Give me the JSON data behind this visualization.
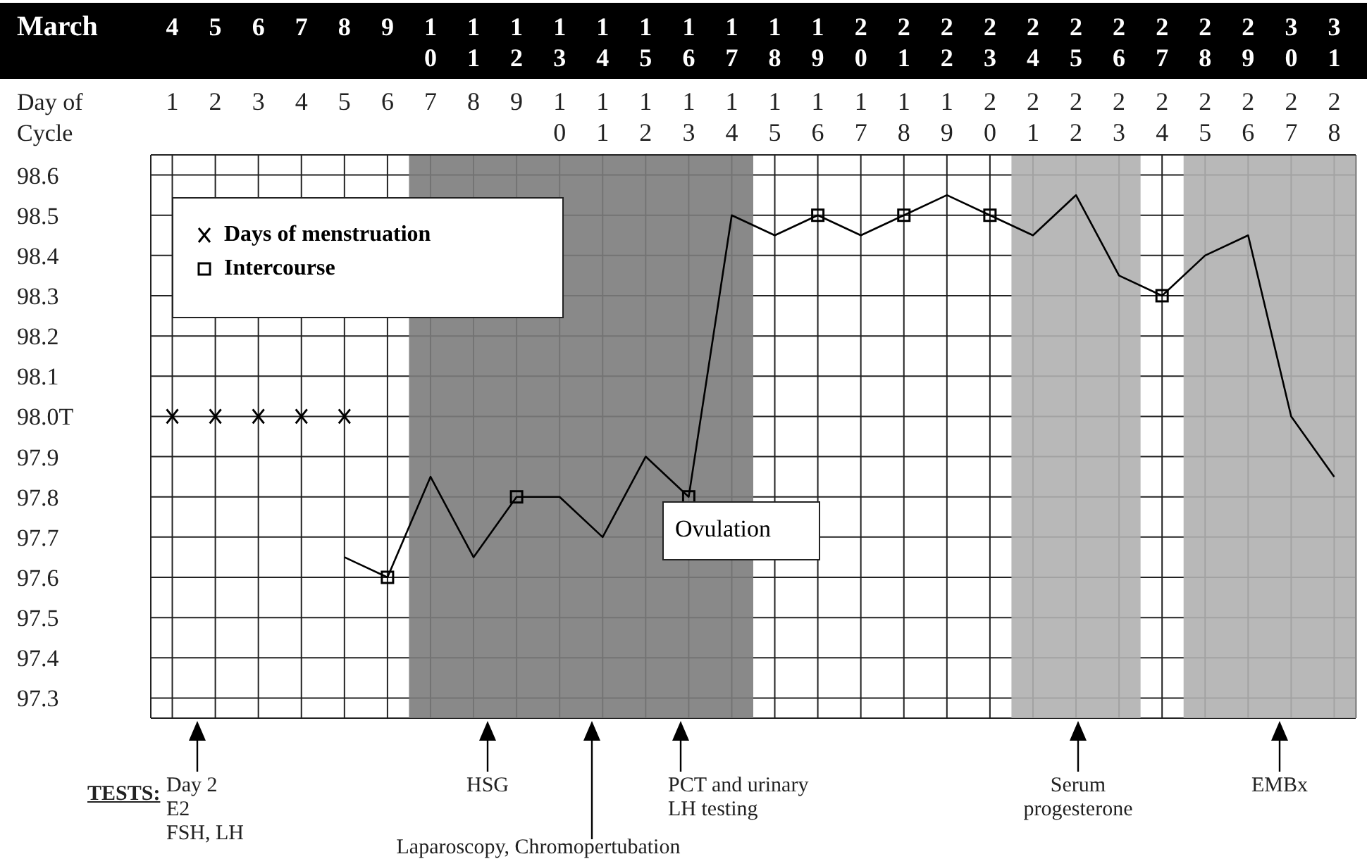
{
  "chart_data": {
    "type": "line",
    "x2label": "March",
    "xlabel": "Day of Cycle",
    "xlim": [
      0.5,
      28.5
    ],
    "xticks": [
      1,
      2,
      3,
      4,
      5,
      6,
      7,
      8,
      9,
      10,
      11,
      12,
      13,
      14,
      15,
      16,
      17,
      18,
      19,
      20,
      21,
      22,
      23,
      24,
      25,
      26,
      27,
      28
    ],
    "x2lim": [
      3.5,
      31.5
    ],
    "x2ticks": [
      4,
      5,
      6,
      7,
      8,
      9,
      10,
      11,
      12,
      13,
      14,
      15,
      16,
      17,
      18,
      19,
      20,
      21,
      22,
      23,
      24,
      25,
      26,
      27,
      28,
      29,
      30,
      31
    ],
    "ylim": [
      97.25,
      98.65
    ],
    "yticks": [
      97.3,
      97.4,
      97.5,
      97.6,
      97.7,
      97.8,
      97.9,
      {
        "value": 98.0,
        "label": "98.0T"
      },
      98.1,
      98.2,
      98.3,
      98.4,
      98.5,
      98.6
    ],
    "series": [
      {
        "color": "#000000",
        "marker": "none",
        "line_style": "solid",
        "x": [
          5,
          6,
          7,
          8,
          9,
          10,
          11,
          12,
          13,
          14,
          15,
          16,
          17,
          18,
          19,
          20,
          21,
          22,
          23,
          24,
          25,
          26,
          27,
          28
        ],
        "values": [
          97.65,
          97.6,
          97.85,
          97.65,
          97.8,
          97.8,
          97.7,
          97.9,
          97.8,
          98.5,
          98.45,
          98.5,
          98.45,
          98.5,
          98.55,
          98.5,
          98.45,
          98.55,
          98.35,
          98.3,
          98.4,
          98.45,
          98.0,
          97.85
        ]
      },
      {
        "type": "scatter",
        "name": "Days of menstruation",
        "color": "#000000",
        "marker": "cross",
        "x": [
          1,
          2,
          3,
          4,
          5
        ],
        "values": [
          98.0,
          98.0,
          98.0,
          98.0,
          98.0
        ]
      },
      {
        "type": "scatter",
        "name": "Intercourse",
        "color": "#000000",
        "marker": "square",
        "x": [
          6,
          9,
          13,
          16,
          18,
          20,
          24
        ],
        "values": [
          97.6,
          97.8,
          97.8,
          98.5,
          98.5,
          98.5,
          98.3
        ]
      }
    ],
    "bands": [
      {
        "axis": "x",
        "from": 6.5,
        "to": 14.5,
        "color": "#7c7c7c"
      },
      {
        "axis": "x",
        "from": 20.5,
        "to": 23.5,
        "color": "#b0b0b0"
      },
      {
        "axis": "x",
        "from": 24.5,
        "to": 28.5,
        "color": "#b0b0b0"
      }
    ],
    "annotations": [
      "Ovulation",
      "TESTS:",
      "Day 2\nE2\nFSH, LH",
      "HSG",
      "Laparoscopy, Chromopertubation",
      "PCT and urinary\nLH testing",
      "Serum\nprogesterone",
      "EMBx"
    ],
    "grid": true,
    "legend": "top left"
  }
}
